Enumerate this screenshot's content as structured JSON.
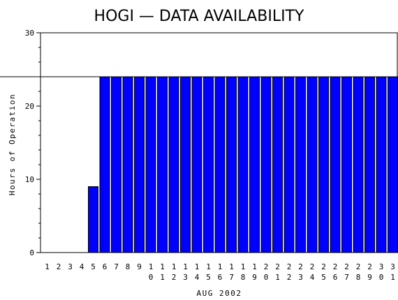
{
  "chart_data": {
    "type": "bar",
    "title": "HOGI — DATA AVAILABILITY",
    "xlabel": "AUG 2002",
    "ylabel": "Hours of Operation",
    "ylim": [
      0,
      30
    ],
    "yticks": [
      0,
      10,
      20,
      30
    ],
    "reference_line": 24,
    "bar_color": "#0000ff",
    "categories": [
      "1",
      "2",
      "3",
      "4",
      "5",
      "6",
      "7",
      "8",
      "9",
      "10",
      "11",
      "12",
      "13",
      "14",
      "15",
      "16",
      "17",
      "18",
      "19",
      "20",
      "21",
      "22",
      "23",
      "24",
      "25",
      "26",
      "27",
      "28",
      "29",
      "30",
      "31"
    ],
    "values": [
      0,
      0,
      0,
      0,
      9,
      24,
      24,
      24,
      24,
      24,
      24,
      24,
      24,
      24,
      24,
      24,
      24,
      24,
      24,
      24,
      24,
      24,
      24,
      24,
      24,
      24,
      24,
      24,
      24,
      24,
      24
    ]
  }
}
